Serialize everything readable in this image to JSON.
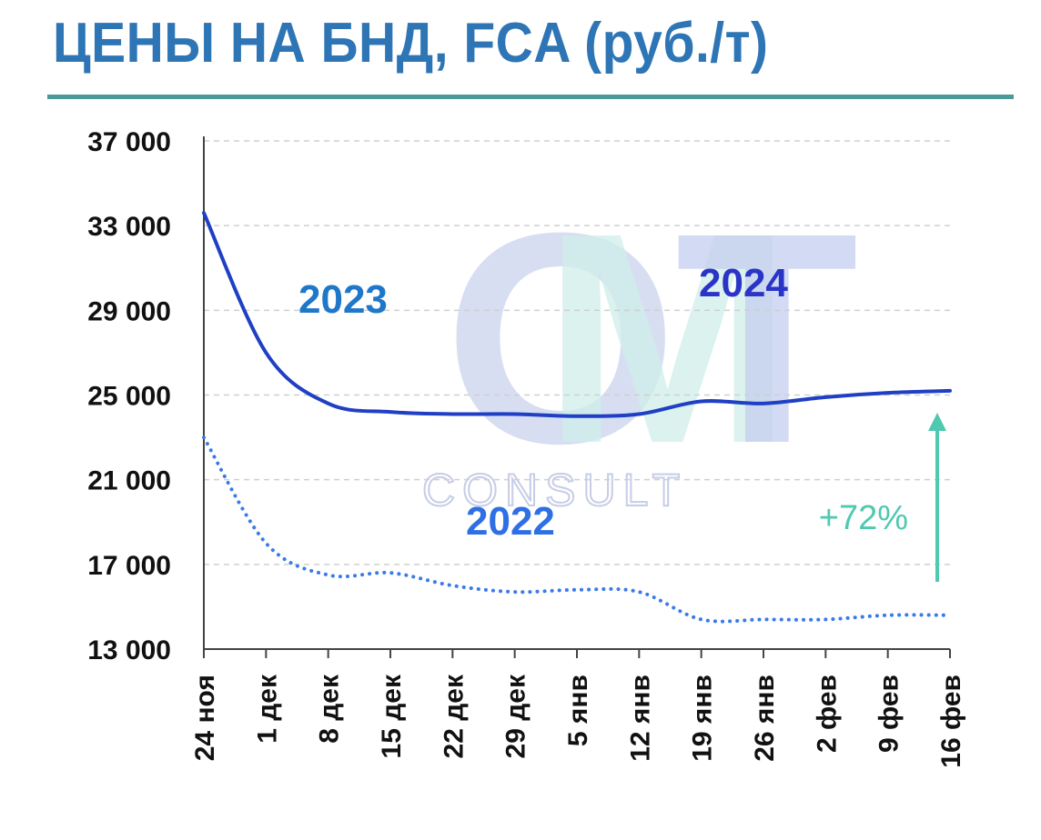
{
  "header": {
    "title": "ЦЕНЫ НА БНД, FCA (руб./т)"
  },
  "watermark": {
    "logo_text": "OMT",
    "logo_subtext": "CONSULT"
  },
  "colors": {
    "title": "#2e75b6",
    "rule": "#4a9a9a",
    "series_main": "#1f3fc4",
    "series_2022": "#3a7be8",
    "label_2023": "#1f77c9",
    "label_2024": "#2a35c8",
    "label_2022": "#2f6fe6",
    "annotation": "#4fc9b0"
  },
  "chart_data": {
    "type": "line",
    "title": "ЦЕНЫ НА БНД, FCA (руб./т)",
    "xlabel": "",
    "ylabel": "",
    "ylim": [
      13000,
      37000
    ],
    "yticks": [
      13000,
      17000,
      21000,
      25000,
      29000,
      33000,
      37000
    ],
    "ytick_labels": [
      "13 000",
      "17 000",
      "21 000",
      "25 000",
      "29 000",
      "33 000",
      "37 000"
    ],
    "grid": true,
    "categories": [
      "24 ноя",
      "1 дек",
      "8 дек",
      "15 дек",
      "22 дек",
      "29 дек",
      "5 янв",
      "12 янв",
      "19 янв",
      "26 янв",
      "2 фев",
      "9 фев",
      "16 фев"
    ],
    "series": [
      {
        "key": "main",
        "style": "solid",
        "values": [
          33600,
          27000,
          24600,
          24200,
          24100,
          24100,
          24000,
          24100,
          24700,
          24600,
          24900,
          25100,
          25200
        ]
      },
      {
        "key": "prev",
        "style": "dotted",
        "values": [
          23000,
          18000,
          16500,
          16600,
          16000,
          15700,
          15800,
          15700,
          14400,
          14400,
          14400,
          14600,
          14600
        ]
      }
    ],
    "labels": {
      "2023": "2023",
      "2024": "2024",
      "2022": "2022"
    },
    "annotation": {
      "text": "+72%",
      "at_category": "16 фев"
    }
  }
}
